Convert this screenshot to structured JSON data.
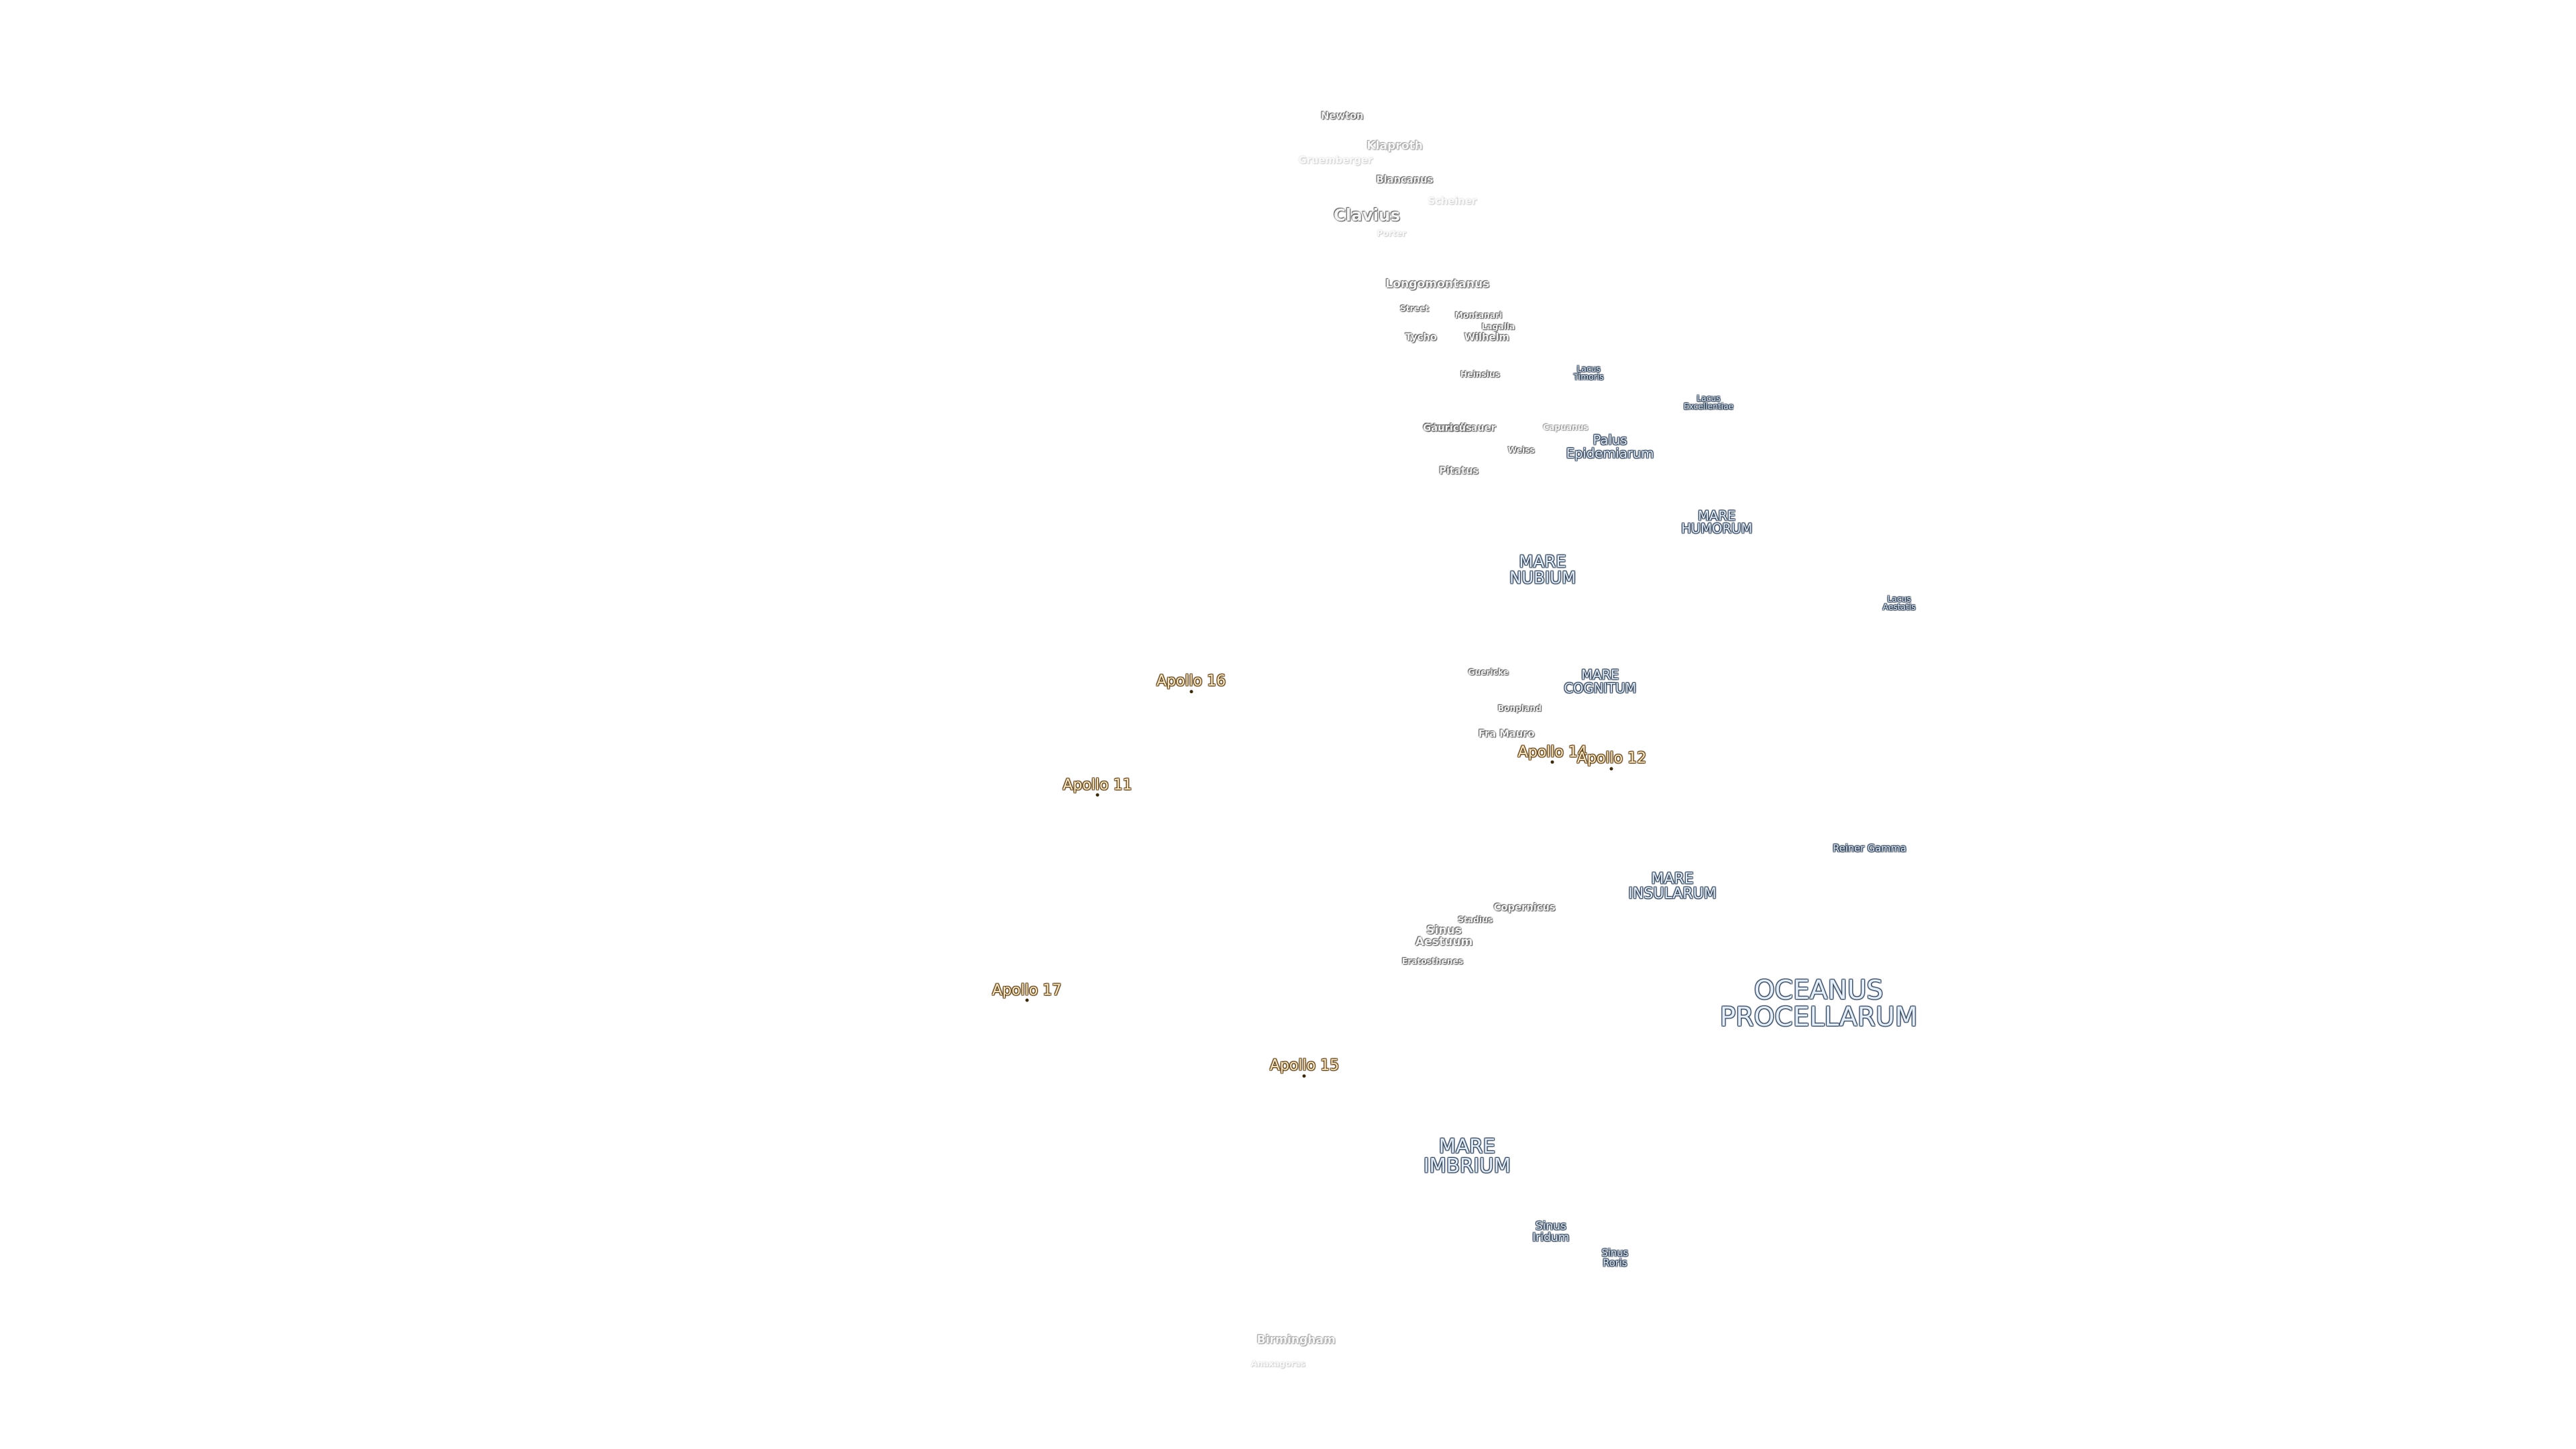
{
  "labels": [
    {
      "lines": [
        "Newton"
      ]
    },
    {
      "lines": [
        "Klaproth"
      ]
    },
    {
      "lines": [
        "Gruemberger"
      ]
    },
    {
      "lines": [
        "Blancanus"
      ]
    },
    {
      "lines": [
        "Scheiner"
      ]
    },
    {
      "lines": [
        "Clavius"
      ]
    },
    {
      "lines": [
        "Porter"
      ]
    },
    {
      "lines": [
        "Longomontanus"
      ]
    },
    {
      "lines": [
        "Street"
      ]
    },
    {
      "lines": [
        "Montanari"
      ]
    },
    {
      "lines": [
        "Lagalla"
      ]
    },
    {
      "lines": [
        "Tycho"
      ]
    },
    {
      "lines": [
        "Wilhelm"
      ]
    },
    {
      "lines": [
        "Heinsius"
      ]
    },
    {
      "lines": [
        "Lacus",
        "Timoris"
      ]
    },
    {
      "lines": [
        "Lacus",
        "Excellentiae"
      ]
    },
    {
      "lines": [
        "Wurzelbauer"
      ]
    },
    {
      "lines": [
        "Gauricus"
      ]
    },
    {
      "lines": [
        "Capuanus"
      ]
    },
    {
      "lines": [
        "Palus",
        "Epidemiarum"
      ]
    },
    {
      "lines": [
        "Weiss"
      ]
    },
    {
      "lines": [
        "Pitatus"
      ]
    },
    {
      "lines": [
        "MARE",
        "HUMORUM"
      ]
    },
    {
      "lines": [
        "MARE",
        "NUBIUM"
      ]
    },
    {
      "lines": [
        "Lacus",
        "Aestatis"
      ]
    },
    {
      "lines": [
        "Apollo 16"
      ]
    },
    {
      "lines": [
        "Guericke"
      ]
    },
    {
      "lines": [
        "MARE",
        "COGNITUM"
      ]
    },
    {
      "lines": [
        "Bonpland"
      ]
    },
    {
      "lines": [
        "Fra Mauro"
      ]
    },
    {
      "lines": [
        "Apollo 14"
      ]
    },
    {
      "lines": [
        "Apollo 12"
      ]
    },
    {
      "lines": [
        "Apollo 11"
      ]
    },
    {
      "lines": [
        "Reiner Gamma"
      ]
    },
    {
      "lines": [
        "MARE",
        "INSULARUM"
      ]
    },
    {
      "lines": [
        "Copernicus"
      ]
    },
    {
      "lines": [
        "Stadius"
      ]
    },
    {
      "lines": [
        "Sinus",
        "Aestuum"
      ]
    },
    {
      "lines": [
        "Eratosthenes"
      ]
    },
    {
      "lines": [
        "Apollo 17"
      ]
    },
    {
      "lines": [
        "OCEANUS",
        "PROCELLARUM"
      ]
    },
    {
      "lines": [
        "Apollo 15"
      ]
    },
    {
      "lines": [
        "MARE",
        "IMBRIUM"
      ]
    },
    {
      "lines": [
        "Sinus",
        "Iridum"
      ]
    },
    {
      "lines": [
        "Sinus",
        "Roris"
      ]
    },
    {
      "lines": [
        "Birmingham"
      ]
    },
    {
      "lines": [
        "Anaxagoras"
      ]
    }
  ]
}
